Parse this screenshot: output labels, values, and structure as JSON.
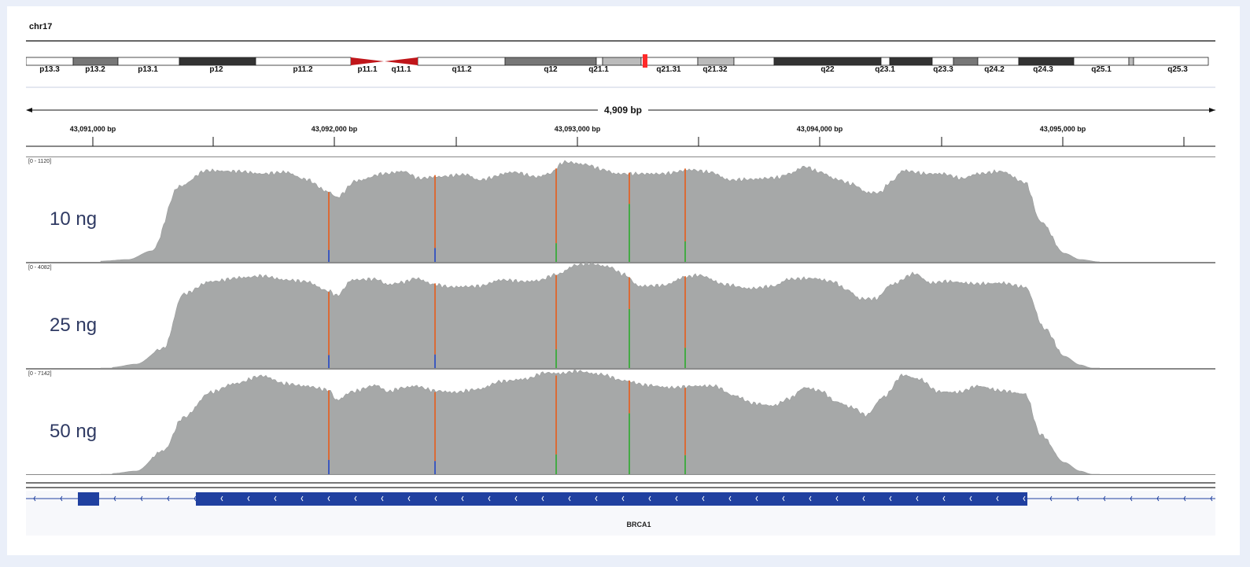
{
  "chromosome": "chr17",
  "ideogram": {
    "bands": [
      "p13.3",
      "p13.2",
      "p13.1",
      "p12",
      "p11.2",
      "p11.1",
      "q11.1",
      "q11.2",
      "q12",
      "q21.1",
      "q21.31",
      "q21.32",
      "q22",
      "q23.1",
      "q23.3",
      "q24.2",
      "q24.3",
      "q25.1",
      "q25.3"
    ]
  },
  "ruler": {
    "span_label": "4,909 bp",
    "positions": [
      "43,091,000 bp",
      "43,092,000 bp",
      "43,093,000 bp",
      "43,094,000 bp",
      "43,095,000 bp"
    ]
  },
  "tracks": [
    {
      "name": "10 ng",
      "range": "[0 - 1120]"
    },
    {
      "name": "25 ng",
      "range": "[0 - 4082]"
    },
    {
      "name": "50 ng",
      "range": "[0 - 7142]"
    }
  ],
  "gene": {
    "name": "BRCA1"
  },
  "colors": {
    "coverage": "#a6a8a8",
    "gene": "#2040a0",
    "centromere": "#c0161a",
    "variant_ref": "#e0642a",
    "variant_blue": "#3050c0",
    "variant_green": "#3aaa3a"
  }
}
